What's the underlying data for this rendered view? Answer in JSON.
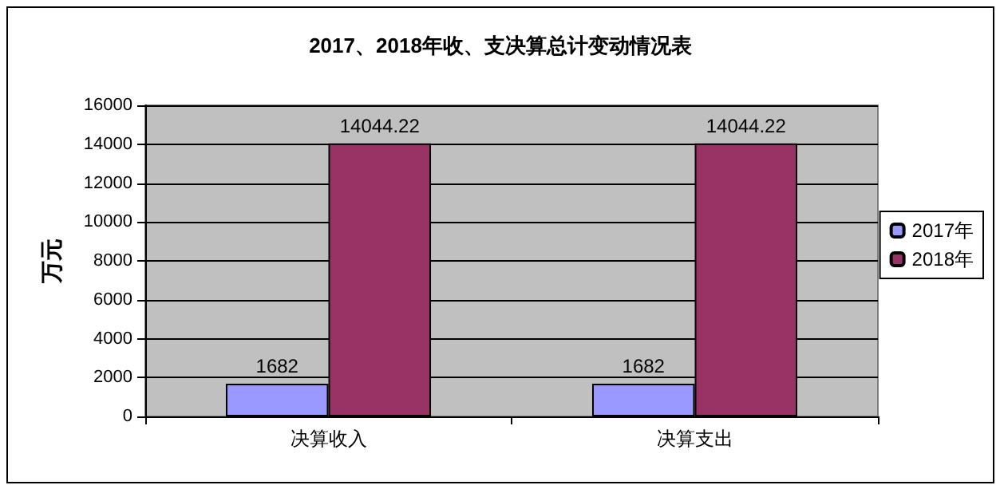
{
  "chart_data": {
    "type": "bar",
    "title": "2017、2018年收、支决算总计变动情况表",
    "ylabel": "万元",
    "categories": [
      "决算收入",
      "决算支出"
    ],
    "series": [
      {
        "name": "2017年",
        "color": "#9999ff",
        "values": [
          1682,
          1682
        ]
      },
      {
        "name": "2018年",
        "color": "#993366",
        "values": [
          14044.22,
          14044.22
        ]
      }
    ],
    "ylim": [
      0,
      16000
    ],
    "yticks": [
      0,
      2000,
      4000,
      6000,
      8000,
      10000,
      12000,
      14000,
      16000
    ],
    "grid": "y",
    "legend": "right",
    "data_labels": true
  }
}
